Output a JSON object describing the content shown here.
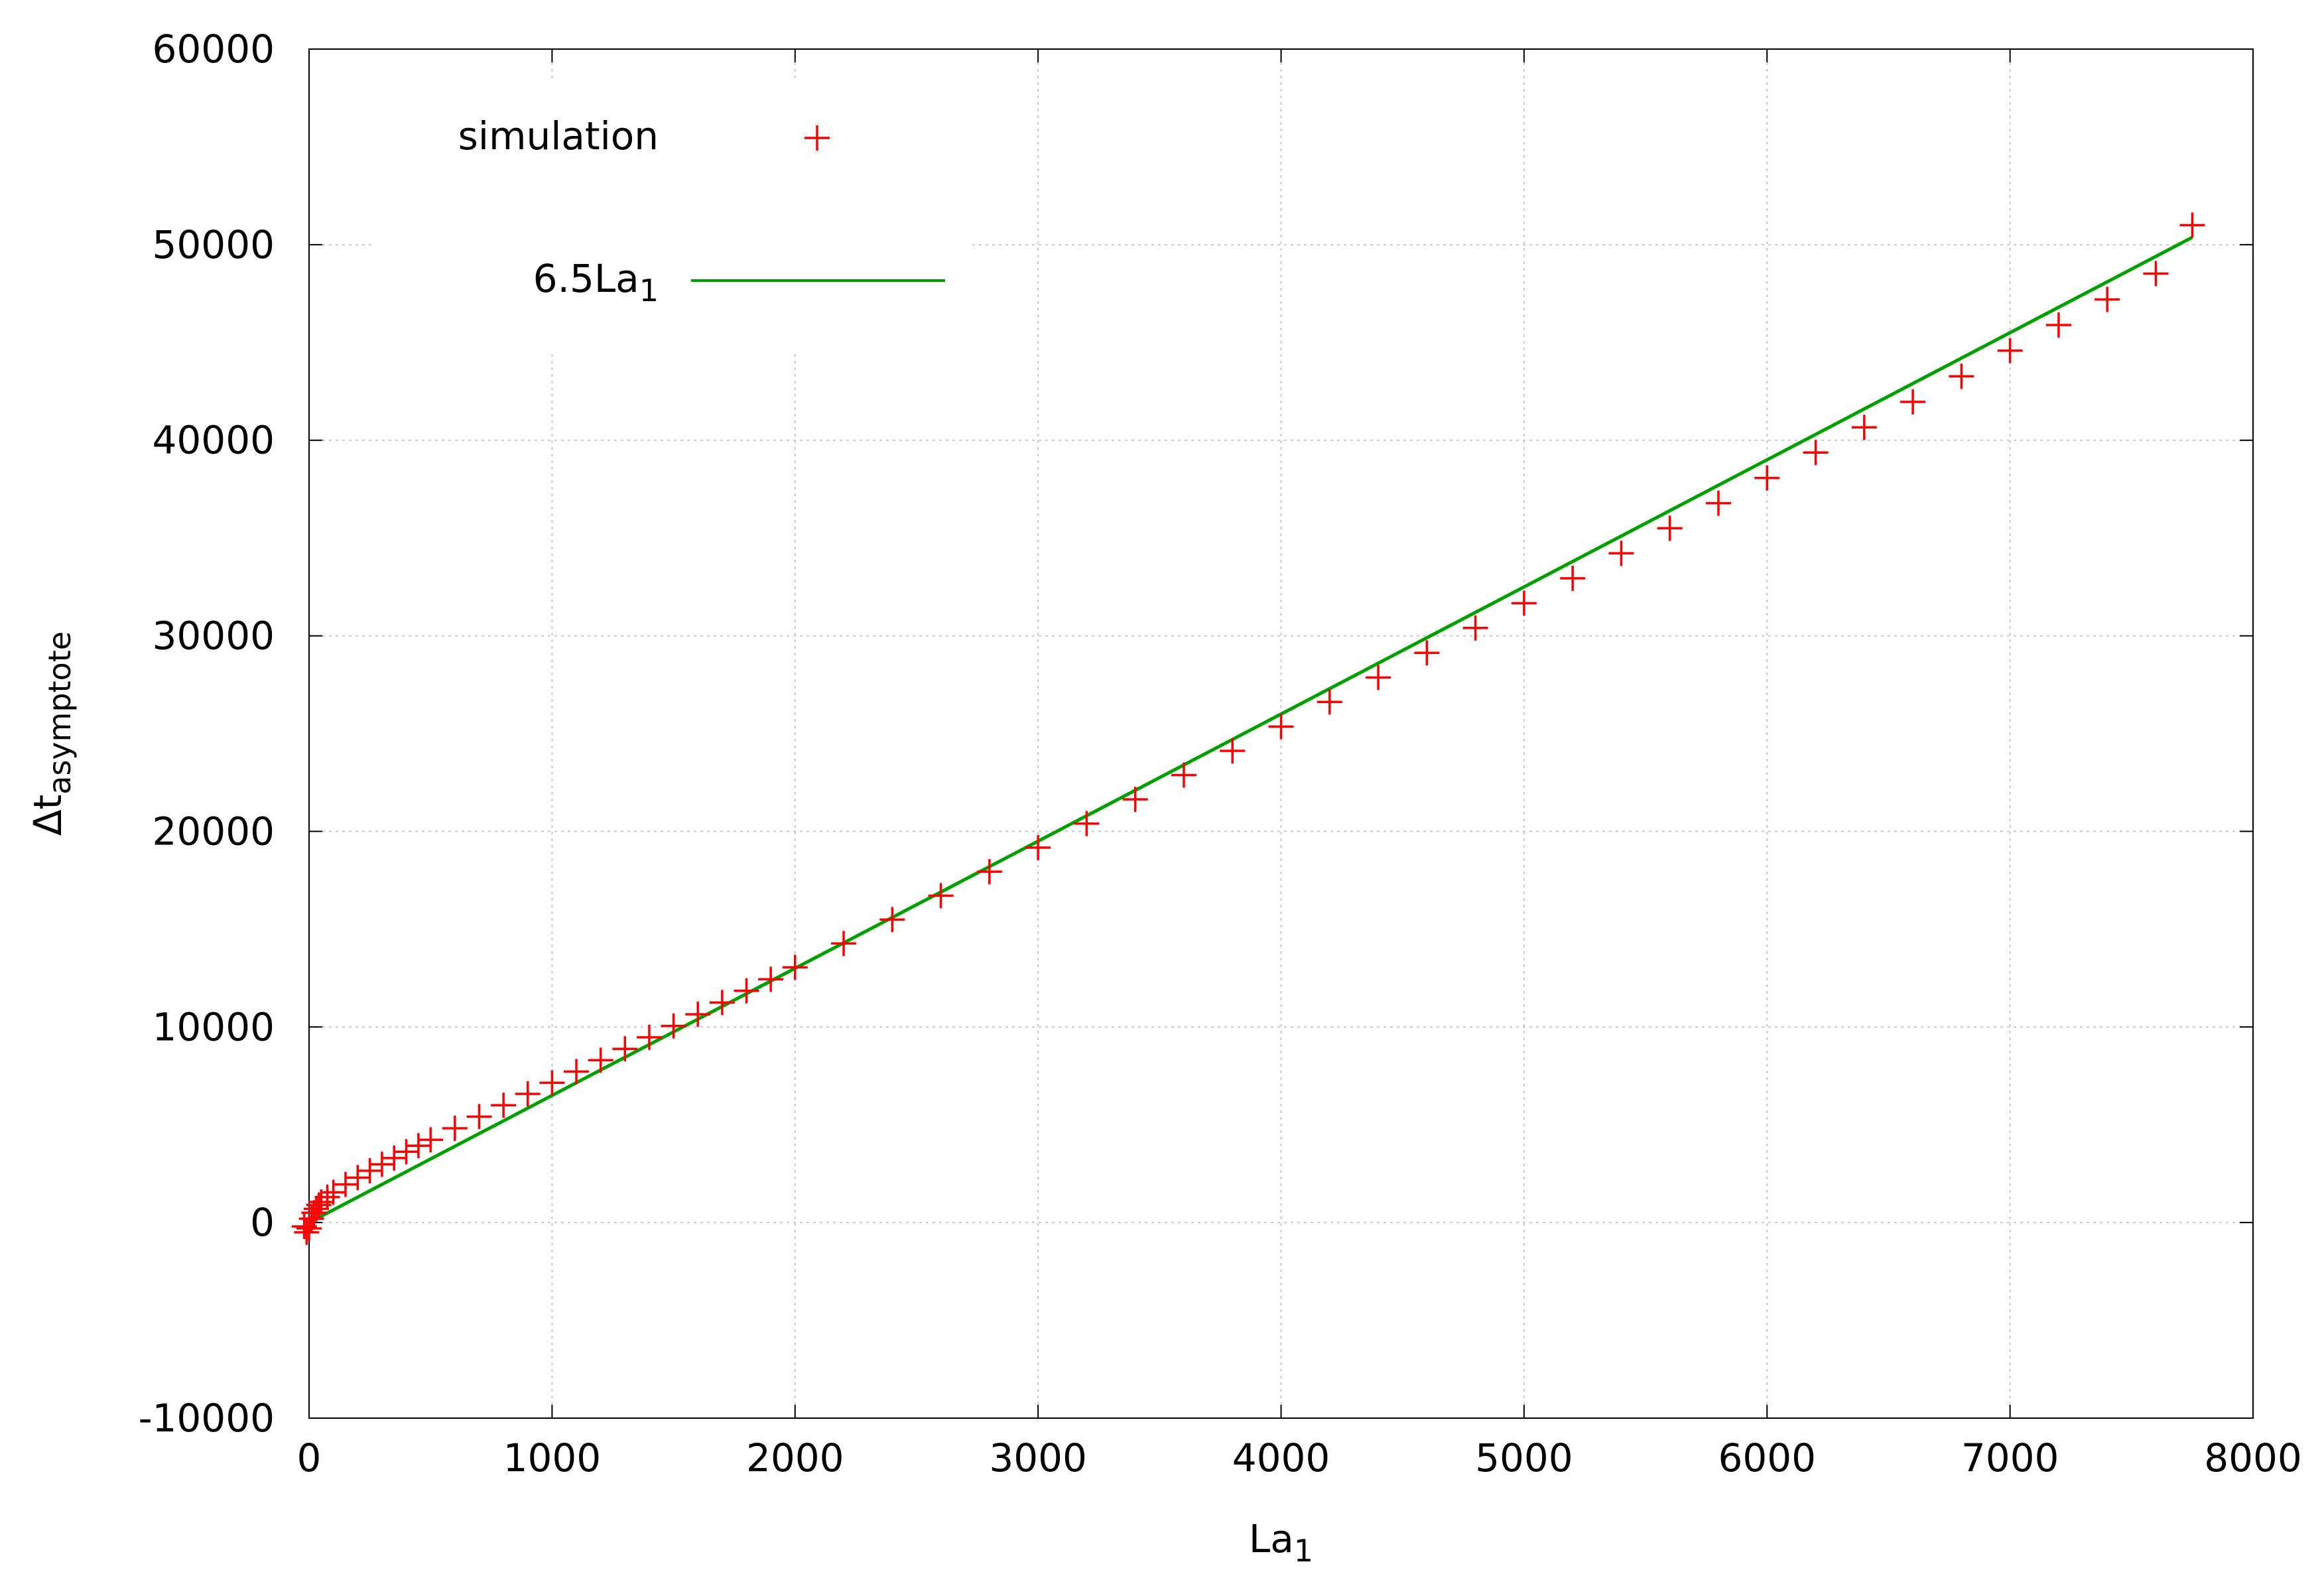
{
  "chart_data": {
    "type": "scatter",
    "xlabel": "La",
    "xlabel_sub": "1",
    "ylabel": "Δt",
    "ylabel_sub": "asymptote",
    "xlim": [
      0,
      8000
    ],
    "ylim": [
      -10000,
      60000
    ],
    "x_ticks": [
      0,
      1000,
      2000,
      3000,
      4000,
      5000,
      6000,
      7000,
      8000
    ],
    "y_ticks": [
      -10000,
      0,
      10000,
      20000,
      30000,
      40000,
      50000,
      60000
    ],
    "x_tick_labels": [
      "0",
      "1000",
      "2000",
      "3000",
      "4000",
      "5000",
      "6000",
      "7000",
      "8000"
    ],
    "y_tick_labels": [
      "-10000",
      "0",
      "10000",
      "20000",
      "30000",
      "40000",
      "50000",
      "60000"
    ],
    "grid": true,
    "legend_position": "top-left",
    "series": [
      {
        "name": "simulation",
        "kind": "points",
        "marker": "plus",
        "color": "#ff0000",
        "points": [
          [
            -20,
            -200
          ],
          [
            -10,
            -500
          ],
          [
            0,
            -300
          ],
          [
            10,
            200
          ],
          [
            20,
            500
          ],
          [
            30,
            700
          ],
          [
            40,
            900
          ],
          [
            50,
            1050
          ],
          [
            75,
            1300
          ],
          [
            100,
            1550
          ],
          [
            150,
            1950
          ],
          [
            200,
            2300
          ],
          [
            250,
            2650
          ],
          [
            300,
            2980
          ],
          [
            350,
            3300
          ],
          [
            400,
            3620
          ],
          [
            450,
            3930
          ],
          [
            500,
            4230
          ],
          [
            600,
            4820
          ],
          [
            700,
            5420
          ],
          [
            800,
            6000
          ],
          [
            900,
            6580
          ],
          [
            1000,
            7150
          ],
          [
            1100,
            7720
          ],
          [
            1200,
            8300
          ],
          [
            1300,
            8880
          ],
          [
            1400,
            9470
          ],
          [
            1500,
            10050
          ],
          [
            1600,
            10650
          ],
          [
            1700,
            11250
          ],
          [
            1800,
            11850
          ],
          [
            1900,
            12440
          ],
          [
            2000,
            13050
          ],
          [
            2200,
            14270
          ],
          [
            2400,
            15490
          ],
          [
            2600,
            16710
          ],
          [
            2800,
            17940
          ],
          [
            3000,
            19170
          ],
          [
            3200,
            20400
          ],
          [
            3400,
            21640
          ],
          [
            3600,
            22880
          ],
          [
            3800,
            24120
          ],
          [
            4000,
            25360
          ],
          [
            4200,
            26620
          ],
          [
            4400,
            27870
          ],
          [
            4600,
            29130
          ],
          [
            4800,
            30400
          ],
          [
            5000,
            31670
          ],
          [
            5200,
            32940
          ],
          [
            5400,
            34220
          ],
          [
            5600,
            35500
          ],
          [
            5800,
            36780
          ],
          [
            6000,
            38070
          ],
          [
            6200,
            39370
          ],
          [
            6400,
            40660
          ],
          [
            6600,
            41960
          ],
          [
            6800,
            43270
          ],
          [
            7000,
            44580
          ],
          [
            7200,
            45890
          ],
          [
            7400,
            47200
          ],
          [
            7600,
            48520
          ],
          [
            7750,
            51000
          ]
        ]
      },
      {
        "name": "6.5La",
        "name_sub": "1",
        "kind": "line",
        "color": "#00a000",
        "slope": 6.5,
        "x_range": [
          0,
          7750
        ]
      }
    ]
  }
}
